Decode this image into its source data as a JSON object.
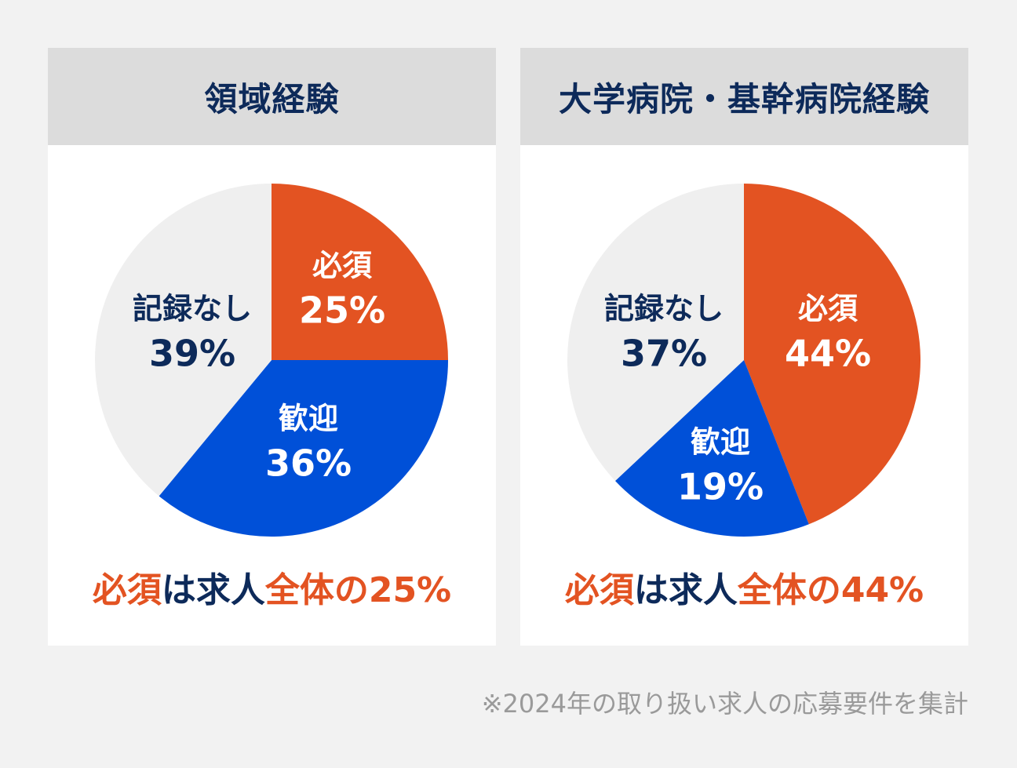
{
  "colors": {
    "required": "#e35322",
    "welcome": "#0050d8",
    "none": "#efefef",
    "navy": "#0d2a5a",
    "white": "#ffffff"
  },
  "chart_data": [
    {
      "type": "pie",
      "title": "領域経験",
      "start": "12 o'clock, clockwise",
      "slices": [
        {
          "label": "必須",
          "value": 25,
          "text": "25%"
        },
        {
          "label": "歓迎",
          "value": 36,
          "text": "36%"
        },
        {
          "label": "記録なし",
          "value": 39,
          "text": "39%"
        }
      ],
      "summary": [
        {
          "text": "必須",
          "color": "orange"
        },
        {
          "text": "は求人",
          "color": "navy"
        },
        {
          "text": "全体の25%",
          "color": "orange"
        }
      ]
    },
    {
      "type": "pie",
      "title": "大学病院・基幹病院経験",
      "start": "12 o'clock, clockwise",
      "slices": [
        {
          "label": "必須",
          "value": 44,
          "text": "44%"
        },
        {
          "label": "歓迎",
          "value": 19,
          "text": "19%"
        },
        {
          "label": "記録なし",
          "value": 37,
          "text": "37%"
        }
      ],
      "summary": [
        {
          "text": "必須",
          "color": "orange"
        },
        {
          "text": "は求人",
          "color": "navy"
        },
        {
          "text": "全体の44%",
          "color": "orange"
        }
      ]
    }
  ],
  "footnote": "※2024年の取り扱い求人の応募要件を集計"
}
